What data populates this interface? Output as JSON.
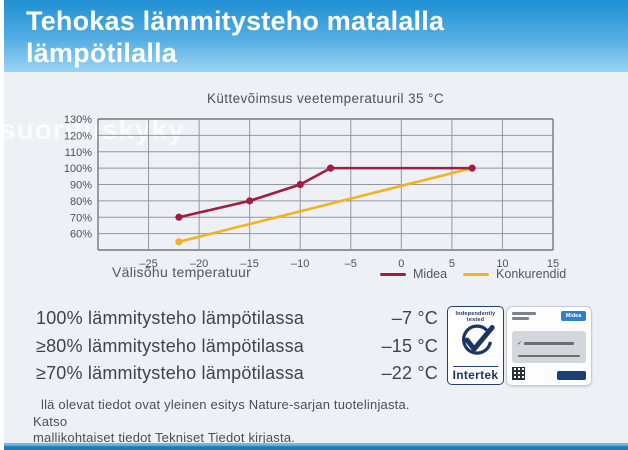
{
  "header": {
    "title_line1": "Tehokas lämmitysteho matalalla",
    "title_line2": "lämpötilalla"
  },
  "watermark": "suorituskyky",
  "chart_data": {
    "type": "line",
    "title": "Küttevõimsus veetemperatuuril 35 °C",
    "xlabel": "Välisõhu temperatuur",
    "ylabel": "",
    "xlim": [
      -30,
      15
    ],
    "ylim_percent": [
      50,
      130
    ],
    "x_ticks": [
      -25,
      -20,
      -15,
      -10,
      -5,
      0,
      5,
      10,
      15
    ],
    "y_ticks_percent": [
      130,
      120,
      110,
      100,
      90,
      80,
      70,
      60
    ],
    "grid": true,
    "legend_position": "bottom-right",
    "series": [
      {
        "name": "Midea",
        "color": "#a01c40",
        "markers": "all",
        "points": [
          [
            -22,
            70
          ],
          [
            -15,
            80
          ],
          [
            -10,
            90
          ],
          [
            -7,
            100
          ],
          [
            7,
            100
          ]
        ]
      },
      {
        "name": "Konkurendid",
        "color": "#f1b224",
        "markers": "start",
        "points": [
          [
            -22,
            55
          ],
          [
            7,
            100
          ]
        ]
      }
    ]
  },
  "stats": {
    "items": [
      {
        "label": "100% lämmitysteho lämpötilassa",
        "value": "–7 °C"
      },
      {
        "label": "≥80% lämmitysteho lämpötilassa",
        "value": "–15 °C"
      },
      {
        "label": "≥70% lämmitysteho lämpötilassa",
        "value": "–22 °C"
      }
    ]
  },
  "badges": {
    "intertek": {
      "tagline_line1": "Independently",
      "tagline_line2": "tested",
      "brand": "Intertek"
    },
    "certificate": {
      "logo": "Midea",
      "checkmark": "✓"
    }
  },
  "footnote": {
    "line1": "llä olevat tiedot ovat yleinen esitys Nature-sarjan tuotelinjasta. Katso",
    "line2": "mallikohtaiset tiedot Tekniset Tiedot kirjasta."
  },
  "colors": {
    "header_top": "#1f8fd2",
    "header_bottom": "#9bd5f4",
    "body_bg": "#edf0f5",
    "footer_bar": "#1b7cba",
    "grid": "#94979c",
    "grid_border": "#74777c",
    "midea_red": "#a01c40",
    "competitor_yellow": "#f1b224",
    "intertek_navy": "#1e3463"
  }
}
